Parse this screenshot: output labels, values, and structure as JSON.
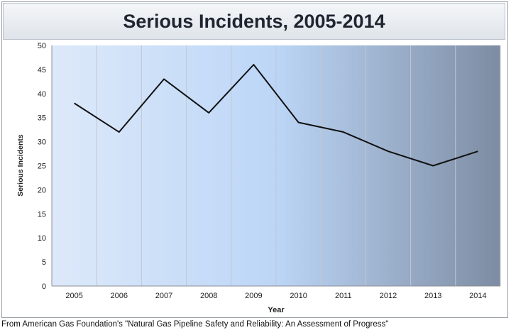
{
  "chart_data": {
    "type": "line",
    "title": "Serious Incidents, 2005-2014",
    "xlabel": "Year",
    "ylabel": "Serious Incidents",
    "categories": [
      "2005",
      "2006",
      "2007",
      "2008",
      "2009",
      "2010",
      "2011",
      "2012",
      "2013",
      "2014"
    ],
    "series": [
      {
        "values": [
          38,
          32,
          43,
          36,
          46,
          34,
          32,
          28,
          25,
          28
        ],
        "color": "#111111"
      }
    ],
    "ylim": [
      0,
      50
    ],
    "yticks": [
      "0",
      "5",
      "10",
      "15",
      "20",
      "25",
      "30",
      "35",
      "40",
      "45",
      "50"
    ],
    "grid": "vertical",
    "legend": "none",
    "background_colors": [
      "#dde9fa",
      "#bcd6f7",
      "#7d8ca3"
    ]
  },
  "source": "From American Gas Foundation's \"Natural Gas Pipeline Safety and Reliability: An Assessment of Progress\""
}
